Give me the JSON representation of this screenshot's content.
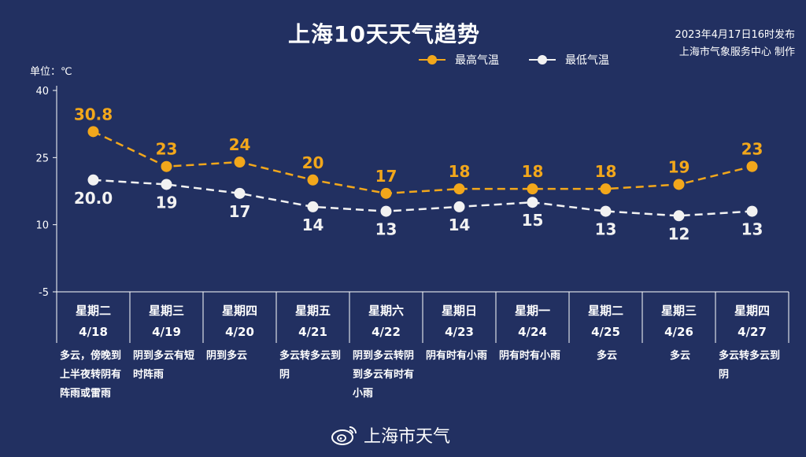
{
  "title": "上海10天天气趋势",
  "publish": {
    "line1": "2023年4月17日16时发布",
    "line2": "上海市气象服务中心 制作"
  },
  "unit_label": "单位：℃",
  "legend": {
    "high_label": "最高气温",
    "low_label": "最低气温"
  },
  "colors": {
    "background": "#223061",
    "high": "#F2A71B",
    "low": "#F2F2F2",
    "axis": "#ffffff"
  },
  "watermark": {
    "icon": "weibo-icon",
    "text": "上海市天气"
  },
  "chart_data": {
    "type": "line",
    "title": "上海10天天气趋势",
    "ylabel": "单位：℃",
    "ylim": [
      -5,
      40
    ],
    "yticks": [
      40,
      25,
      10,
      -5
    ],
    "grid": false,
    "legend_position": "top-right",
    "x": [
      "4/18",
      "4/19",
      "4/20",
      "4/21",
      "4/22",
      "4/23",
      "4/24",
      "4/25",
      "4/26",
      "4/27"
    ],
    "series": [
      {
        "name": "最高气温",
        "values": [
          30.8,
          23,
          24,
          20,
          17,
          18,
          18,
          18,
          19,
          23
        ],
        "labels": [
          "30.8",
          "23",
          "24",
          "20",
          "17",
          "18",
          "18",
          "18",
          "19",
          "23"
        ]
      },
      {
        "name": "最低气温",
        "values": [
          20.0,
          19,
          17,
          14,
          13,
          14,
          15,
          13,
          12,
          13
        ],
        "labels": [
          "20.0",
          "19",
          "17",
          "14",
          "13",
          "14",
          "15",
          "13",
          "12",
          "13"
        ]
      }
    ]
  },
  "days": [
    {
      "weekday": "星期二",
      "date": "4/18",
      "weather": "多云，傍晚到上半夜转阴有阵雨或雷雨"
    },
    {
      "weekday": "星期三",
      "date": "4/19",
      "weather": "阴到多云有短时阵雨"
    },
    {
      "weekday": "星期四",
      "date": "4/20",
      "weather": "阴到多云"
    },
    {
      "weekday": "星期五",
      "date": "4/21",
      "weather": "多云转多云到阴"
    },
    {
      "weekday": "星期六",
      "date": "4/22",
      "weather": "阴到多云转阴到多云有时有小雨"
    },
    {
      "weekday": "星期日",
      "date": "4/23",
      "weather": "阴有时有小雨"
    },
    {
      "weekday": "星期一",
      "date": "4/24",
      "weather": "阴有时有小雨"
    },
    {
      "weekday": "星期二",
      "date": "4/25",
      "weather": "多云"
    },
    {
      "weekday": "星期三",
      "date": "4/26",
      "weather": "多云"
    },
    {
      "weekday": "星期四",
      "date": "4/27",
      "weather": "多云转多云到阴"
    }
  ]
}
